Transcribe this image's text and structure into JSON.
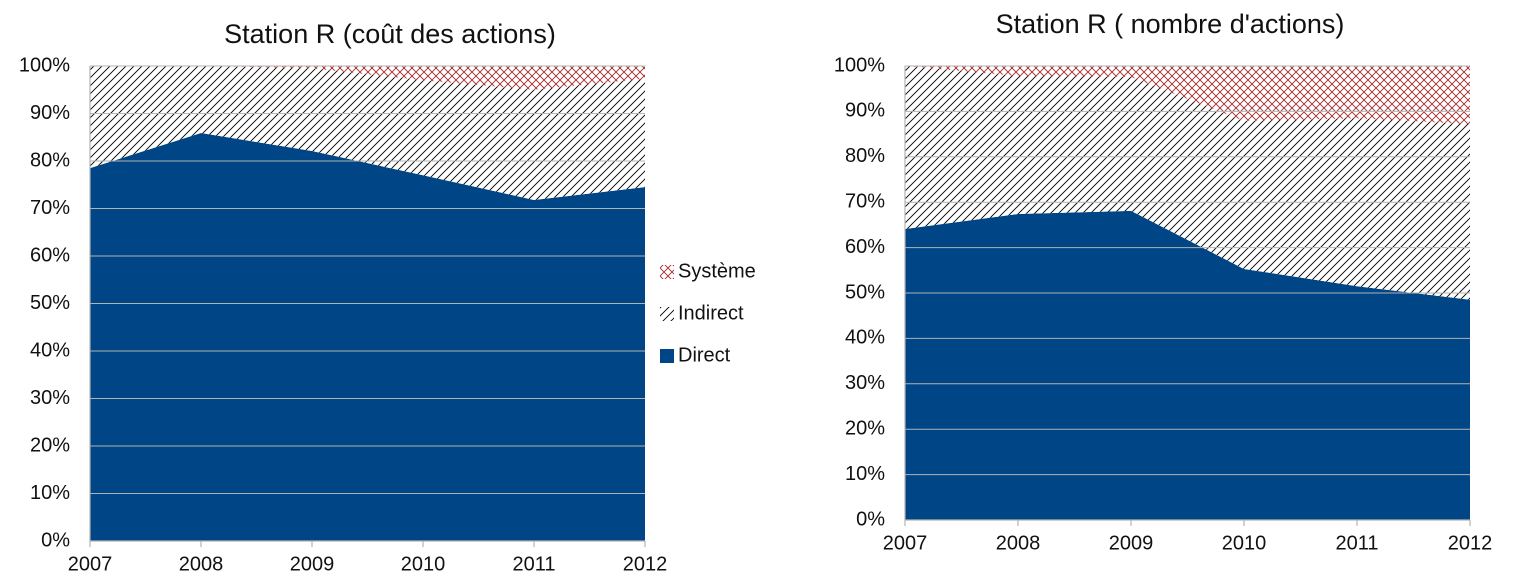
{
  "chart_data": [
    {
      "type": "stacked-area",
      "title": "Station R (coût des actions)",
      "x": [
        2007,
        2008,
        2009,
        2010,
        2011,
        2012
      ],
      "xlim": [
        2007,
        2012
      ],
      "xticks": [
        2007,
        2008,
        2009,
        2010,
        2011,
        2012
      ],
      "ylim": [
        0,
        100
      ],
      "yticks": [
        {
          "value": 0,
          "label": "0%"
        },
        {
          "value": 10,
          "label": "10%"
        },
        {
          "value": 20,
          "label": "20%"
        },
        {
          "value": 30,
          "label": "30%"
        },
        {
          "value": 40,
          "label": "40%"
        },
        {
          "value": 50,
          "label": "50%"
        },
        {
          "value": 60,
          "label": "60%"
        },
        {
          "value": 70,
          "label": "70%"
        },
        {
          "value": 80,
          "label": "80%"
        },
        {
          "value": 90,
          "label": "90%"
        },
        {
          "value": 100,
          "label": "100%"
        }
      ],
      "grid": true,
      "legend": "right",
      "series": [
        {
          "name": "Direct",
          "color": "#004586",
          "pattern": "solid",
          "values": [
            78.5,
            85.9,
            82.1,
            77,
            71.8,
            74.5
          ]
        },
        {
          "name": "Indirect",
          "color": "#000000",
          "pattern": "hatch",
          "values": [
            21.5,
            14.1,
            17.4,
            20,
            23.2,
            22.8
          ]
        },
        {
          "name": "Système",
          "color": "#a52a2a",
          "pattern": "crosshatch",
          "values": [
            0,
            0,
            0.5,
            3,
            5,
            2.7
          ]
        }
      ]
    },
    {
      "type": "stacked-area",
      "title": "Station R ( nombre d'actions)",
      "x": [
        2007,
        2008,
        2009,
        2010,
        2011,
        2012
      ],
      "xlim": [
        2007,
        2012
      ],
      "xticks": [
        2007,
        2008,
        2009,
        2010,
        2011,
        2012
      ],
      "ylim": [
        0,
        100
      ],
      "yticks": [
        {
          "value": 0,
          "label": "0%"
        },
        {
          "value": 10,
          "label": "10%"
        },
        {
          "value": 20,
          "label": "20%"
        },
        {
          "value": 30,
          "label": "30%"
        },
        {
          "value": 40,
          "label": "40%"
        },
        {
          "value": 50,
          "label": "50%"
        },
        {
          "value": 60,
          "label": "60%"
        },
        {
          "value": 70,
          "label": "70%"
        },
        {
          "value": 80,
          "label": "80%"
        },
        {
          "value": 90,
          "label": "90%"
        },
        {
          "value": 100,
          "label": "100%"
        }
      ],
      "grid": true,
      "series": [
        {
          "color": "#004586",
          "pattern": "solid",
          "values": [
            64.1,
            67.4,
            68.1,
            55.3,
            51.5,
            48.5
          ]
        },
        {
          "color": "#000000",
          "pattern": "hatch",
          "values": [
            35.9,
            30.4,
            29.5,
            32.6,
            37,
            38.7
          ]
        },
        {
          "color": "#a52a2a",
          "pattern": "crosshatch",
          "values": [
            0,
            2.2,
            2.4,
            12.1,
            11.5,
            12.8
          ]
        }
      ]
    }
  ]
}
